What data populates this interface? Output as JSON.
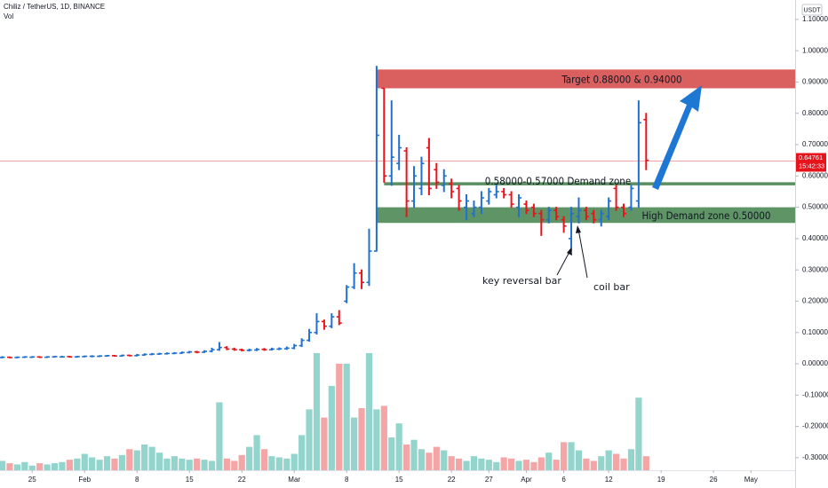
{
  "chart_data": {
    "type": "ohlc",
    "title": "Chiliz / TetherUS, 1D, BINANCE",
    "subtitle": "Vol",
    "axis_unit": "USDT",
    "last_price": 0.64761,
    "countdown": "15:42:33",
    "up_color": "#2070d0",
    "down_color": "#e8141c",
    "volume_up_color": "#93d5cc",
    "volume_down_color": "#f4a5a5",
    "price_line_color": "#f3a5a5",
    "xlim": [
      -4.3,
      101.9
    ],
    "ylim": [
      -0.34,
      1.162
    ],
    "y2lim": [
      0,
      100
    ],
    "xticks": [
      {
        "value": 0,
        "label": "25"
      },
      {
        "value": 7,
        "label": "Feb"
      },
      {
        "value": 14,
        "label": "8"
      },
      {
        "value": 21,
        "label": "15"
      },
      {
        "value": 28,
        "label": "22"
      },
      {
        "value": 35,
        "label": "Mar"
      },
      {
        "value": 42,
        "label": "8"
      },
      {
        "value": 49,
        "label": "15"
      },
      {
        "value": 56,
        "label": "22"
      },
      {
        "value": 61,
        "label": "27"
      },
      {
        "value": 66,
        "label": "Apr"
      },
      {
        "value": 71,
        "label": "6"
      },
      {
        "value": 77,
        "label": "12"
      },
      {
        "value": 84,
        "label": "19"
      },
      {
        "value": 91,
        "label": "26"
      },
      {
        "value": 96,
        "label": "May"
      }
    ],
    "yticks": [
      {
        "value": 1.1,
        "label": "1.10000"
      },
      {
        "value": 1.0,
        "label": "1.00000"
      },
      {
        "value": 0.9,
        "label": "0.90000"
      },
      {
        "value": 0.8,
        "label": "0.80000"
      },
      {
        "value": 0.7,
        "label": "0.70000"
      },
      {
        "value": 0.6,
        "label": "0.60000"
      },
      {
        "value": 0.5,
        "label": "0.50000"
      },
      {
        "value": 0.4,
        "label": "0.40000"
      },
      {
        "value": 0.3,
        "label": "0.30000"
      },
      {
        "value": 0.2,
        "label": "0.20000"
      },
      {
        "value": 0.1,
        "label": "0.10000"
      },
      {
        "value": 0,
        "label": "0.00000"
      },
      {
        "value": -0.1,
        "label": "-0.10000"
      },
      {
        "value": -0.2,
        "label": "-0.20000"
      },
      {
        "value": -0.3,
        "label": "-0.30000"
      }
    ],
    "x": [
      -4,
      -3,
      -2,
      -1,
      0,
      1,
      2,
      3,
      4,
      5,
      6,
      7,
      8,
      9,
      10,
      11,
      12,
      13,
      14,
      15,
      16,
      17,
      18,
      19,
      20,
      21,
      22,
      23,
      24,
      25,
      26,
      27,
      28,
      29,
      30,
      31,
      32,
      33,
      34,
      35,
      36,
      37,
      38,
      39,
      40,
      41,
      42,
      43,
      44,
      45,
      46,
      47,
      48,
      49,
      50,
      51,
      52,
      53,
      54,
      55,
      56,
      57,
      58,
      59,
      60,
      61,
      62,
      63,
      64,
      65,
      66,
      67,
      68,
      69,
      70,
      71,
      72,
      73,
      74,
      75,
      76,
      77,
      78,
      79,
      80,
      81,
      82
    ],
    "open": [
      0.02,
      0.021,
      0.02,
      0.021,
      0.021,
      0.022,
      0.021,
      0.022,
      0.022,
      0.023,
      0.022,
      0.023,
      0.024,
      0.024,
      0.025,
      0.026,
      0.025,
      0.027,
      0.026,
      0.028,
      0.03,
      0.031,
      0.032,
      0.033,
      0.034,
      0.036,
      0.038,
      0.037,
      0.04,
      0.045,
      0.052,
      0.047,
      0.045,
      0.043,
      0.044,
      0.046,
      0.045,
      0.047,
      0.048,
      0.05,
      0.058,
      0.075,
      0.1,
      0.135,
      0.12,
      0.15,
      0.2,
      0.245,
      0.29,
      0.26,
      0.36,
      0.88,
      0.6,
      0.64,
      0.68,
      0.52,
      0.56,
      0.69,
      0.62,
      0.57,
      0.575,
      0.56,
      0.5,
      0.48,
      0.5,
      0.52,
      0.54,
      0.55,
      0.54,
      0.5,
      0.51,
      0.5,
      0.48,
      0.46,
      0.49,
      0.46,
      0.4,
      0.47,
      0.49,
      0.48,
      0.46,
      0.47,
      0.56,
      0.5,
      0.5,
      0.52,
      0.78
    ],
    "high": [
      0.023,
      0.022,
      0.022,
      0.023,
      0.023,
      0.023,
      0.023,
      0.024,
      0.024,
      0.024,
      0.024,
      0.025,
      0.026,
      0.026,
      0.027,
      0.027,
      0.028,
      0.028,
      0.03,
      0.032,
      0.033,
      0.034,
      0.035,
      0.036,
      0.038,
      0.04,
      0.04,
      0.042,
      0.05,
      0.068,
      0.055,
      0.05,
      0.047,
      0.047,
      0.049,
      0.049,
      0.05,
      0.051,
      0.054,
      0.062,
      0.08,
      0.11,
      0.16,
      0.14,
      0.16,
      0.17,
      0.25,
      0.32,
      0.3,
      0.43,
      0.95,
      0.88,
      0.84,
      0.73,
      0.69,
      0.63,
      0.66,
      0.72,
      0.64,
      0.62,
      0.59,
      0.57,
      0.54,
      0.52,
      0.55,
      0.56,
      0.57,
      0.56,
      0.55,
      0.54,
      0.52,
      0.51,
      0.49,
      0.5,
      0.5,
      0.47,
      0.5,
      0.53,
      0.5,
      0.49,
      0.49,
      0.53,
      0.57,
      0.51,
      0.57,
      0.84,
      0.8
    ],
    "low": [
      0.019,
      0.019,
      0.019,
      0.02,
      0.02,
      0.02,
      0.02,
      0.021,
      0.021,
      0.021,
      0.021,
      0.022,
      0.022,
      0.023,
      0.024,
      0.024,
      0.024,
      0.025,
      0.025,
      0.027,
      0.029,
      0.03,
      0.031,
      0.032,
      0.033,
      0.035,
      0.035,
      0.036,
      0.038,
      0.043,
      0.045,
      0.043,
      0.041,
      0.041,
      0.042,
      0.043,
      0.044,
      0.045,
      0.046,
      0.048,
      0.055,
      0.072,
      0.095,
      0.11,
      0.115,
      0.125,
      0.195,
      0.24,
      0.24,
      0.25,
      0.36,
      0.58,
      0.57,
      0.62,
      0.47,
      0.5,
      0.54,
      0.54,
      0.56,
      0.55,
      0.53,
      0.49,
      0.46,
      0.47,
      0.48,
      0.51,
      0.53,
      0.53,
      0.5,
      0.47,
      0.48,
      0.47,
      0.41,
      0.45,
      0.46,
      0.42,
      0.36,
      0.45,
      0.46,
      0.45,
      0.44,
      0.46,
      0.49,
      0.47,
      0.49,
      0.5,
      0.62
    ],
    "close": [
      0.021,
      0.02,
      0.021,
      0.022,
      0.022,
      0.021,
      0.022,
      0.023,
      0.022,
      0.022,
      0.023,
      0.024,
      0.024,
      0.025,
      0.026,
      0.025,
      0.027,
      0.026,
      0.028,
      0.03,
      0.031,
      0.032,
      0.033,
      0.034,
      0.036,
      0.038,
      0.037,
      0.04,
      0.045,
      0.052,
      0.047,
      0.045,
      0.043,
      0.044,
      0.046,
      0.045,
      0.047,
      0.048,
      0.05,
      0.058,
      0.075,
      0.1,
      0.135,
      0.12,
      0.15,
      0.13,
      0.245,
      0.29,
      0.26,
      0.36,
      0.73,
      0.6,
      0.66,
      0.69,
      0.52,
      0.6,
      0.64,
      0.56,
      0.58,
      0.6,
      0.55,
      0.52,
      0.52,
      0.5,
      0.53,
      0.55,
      0.55,
      0.54,
      0.51,
      0.53,
      0.49,
      0.48,
      0.46,
      0.49,
      0.47,
      0.44,
      0.48,
      0.49,
      0.47,
      0.46,
      0.48,
      0.52,
      0.5,
      0.48,
      0.56,
      0.77,
      0.65
    ],
    "volume": [
      8,
      6,
      5,
      7,
      4,
      6,
      5,
      6,
      7,
      9,
      10,
      14,
      11,
      9,
      12,
      10,
      13,
      18,
      17,
      22,
      20,
      15,
      10,
      12,
      10,
      9,
      10,
      9,
      8,
      58,
      10,
      8,
      13,
      20,
      30,
      18,
      12,
      11,
      10,
      14,
      30,
      52,
      100,
      45,
      72,
      91,
      91,
      45,
      53,
      100,
      52,
      55,
      28,
      40,
      22,
      26,
      18,
      15,
      20,
      17,
      12,
      10,
      8,
      12,
      10,
      9,
      7,
      11,
      10,
      8,
      9,
      7,
      11,
      15,
      9,
      24,
      24,
      17,
      10,
      8,
      12,
      17,
      14,
      10,
      18,
      62,
      12
    ],
    "zones": [
      {
        "label": "Target 0.88000 & 0.94000",
        "range": [
          0.88,
          0.94
        ],
        "start": 46,
        "color": "#d9605f"
      },
      {
        "label": "0.58000-0.57000 Demand zone",
        "range": [
          0.57,
          0.58
        ],
        "start": 47,
        "color": "#5b8f62"
      },
      {
        "label": "High Demand zone 0.50000",
        "range": [
          0.45,
          0.5
        ],
        "start": 46,
        "color": "#5e9466"
      }
    ],
    "annotations": [
      {
        "text": "key reversal bar"
      },
      {
        "text": "coil bar"
      }
    ]
  }
}
